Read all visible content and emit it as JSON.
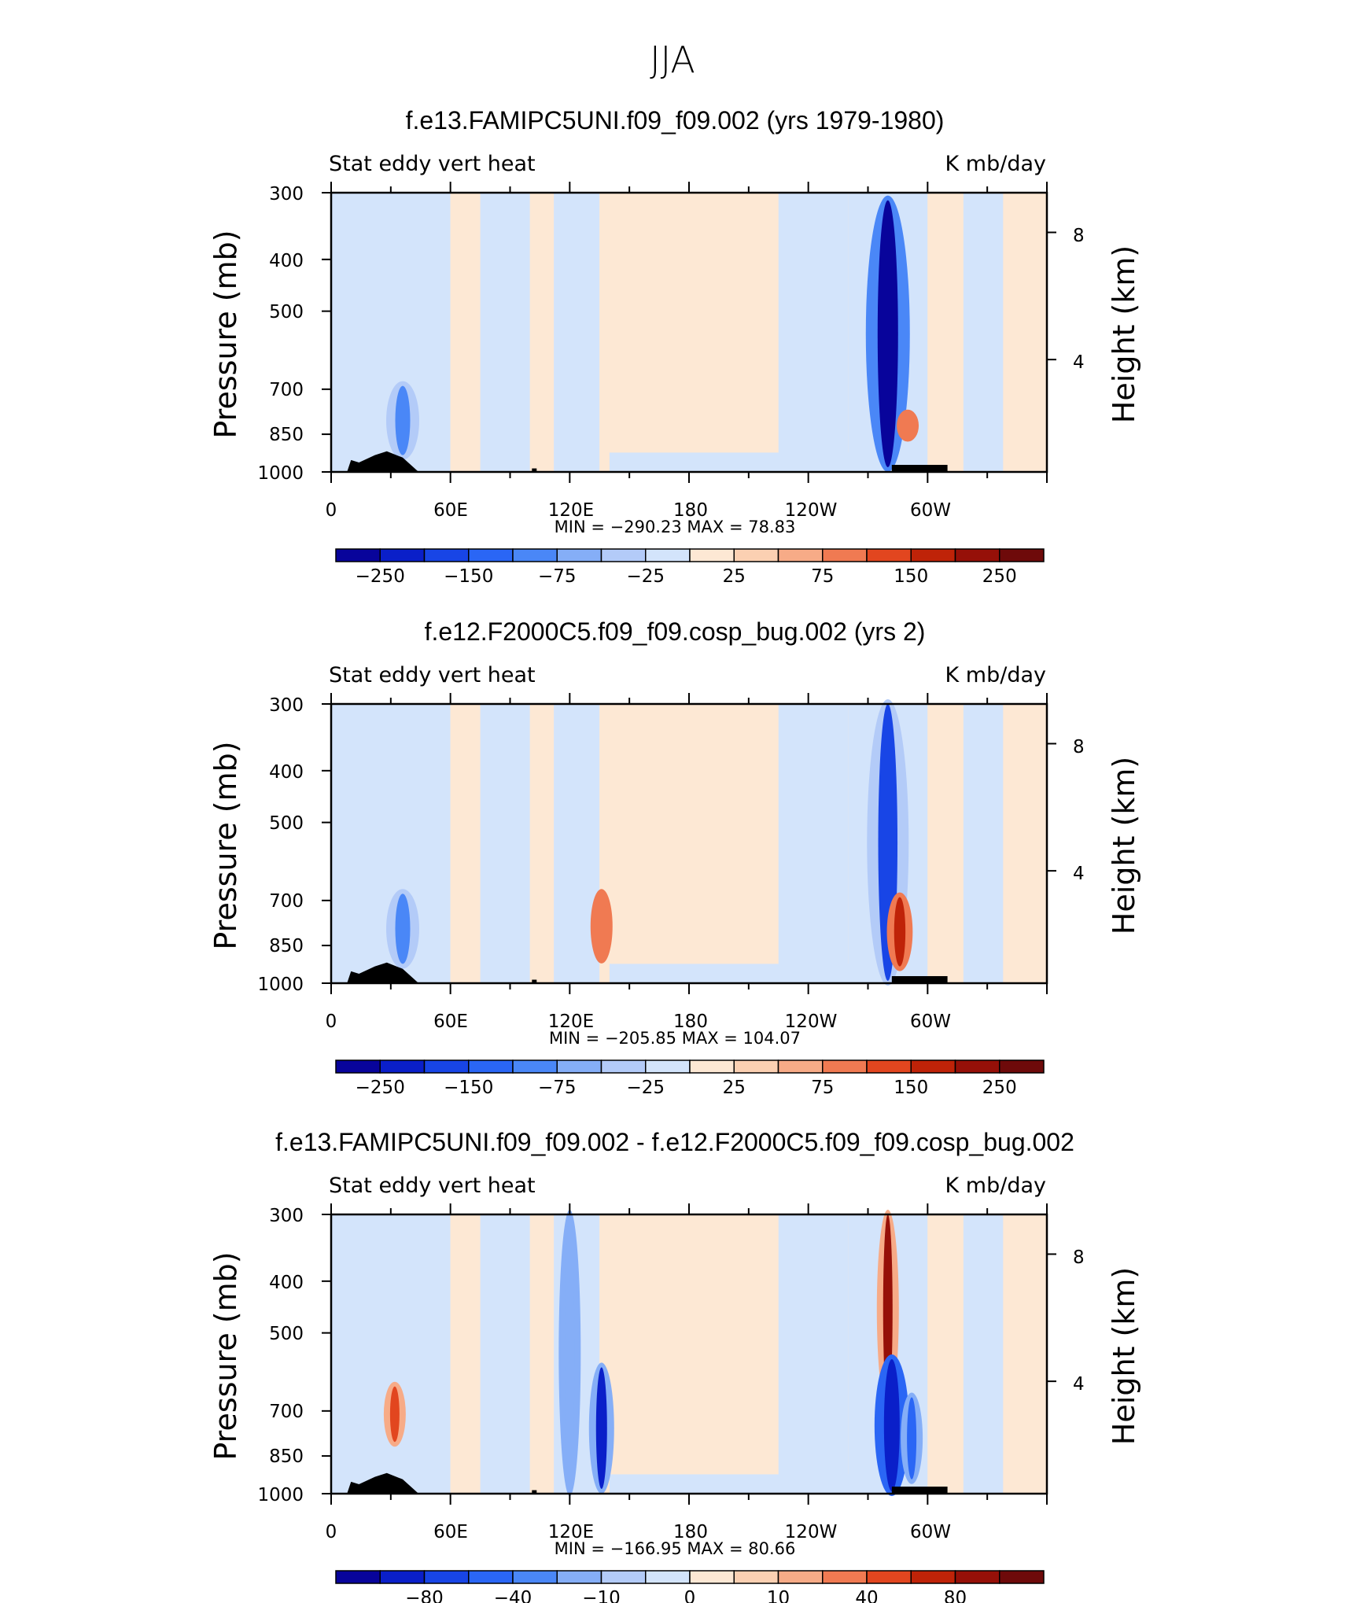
{
  "suptitle": "JJA",
  "colors": [
    "#08049b",
    "#0a1fc9",
    "#1845e6",
    "#2a66f5",
    "#4a87f7",
    "#85aef7",
    "#b3cbf8",
    "#d3e4fb",
    "#fde8d4",
    "#fbd0b2",
    "#f7ab87",
    "#f07a52",
    "#e2461f",
    "#bf2308",
    "#961008",
    "#6e0a0a"
  ],
  "panels": [
    {
      "title": "f.e13.FAMIPC5UNI.f09_f09.002 (yrs 1979-1980)",
      "left_label": "Stat eddy vert heat",
      "right_label": "K mb/day",
      "ylabel": "Pressure (mb)",
      "y2label": "Height (km)",
      "min_label": "MIN",
      "min_value": "−290.23",
      "max_label": "MAX",
      "max_value": "78.83",
      "cb_labels": [
        "−250",
        "−150",
        "−75",
        "−25",
        "25",
        "75",
        "150",
        "250"
      ]
    },
    {
      "title": "f.e12.F2000C5.f09_f09.cosp_bug.002 (yrs 2)",
      "left_label": "Stat eddy vert heat",
      "right_label": "K mb/day",
      "ylabel": "Pressure (mb)",
      "y2label": "Height (km)",
      "min_label": "MIN",
      "min_value": "−205.85",
      "max_label": "MAX",
      "max_value": "104.07",
      "cb_labels": [
        "−250",
        "−150",
        "−75",
        "−25",
        "25",
        "75",
        "150",
        "250"
      ]
    },
    {
      "title": "f.e13.FAMIPC5UNI.f09_f09.002 - f.e12.F2000C5.f09_f09.cosp_bug.002",
      "left_label": "Stat eddy vert heat",
      "right_label": "K mb/day",
      "ylabel": "Pressure (mb)",
      "y2label": "Height (km)",
      "min_label": "MIN",
      "min_value": "−166.95",
      "max_label": "MAX",
      "max_value": "80.66",
      "cb_labels": [
        "−80",
        "−40",
        "−10",
        "0",
        "10",
        "40",
        "80"
      ]
    }
  ],
  "chart_data": [
    {
      "type": "heatmap",
      "title": "f.e13.FAMIPC5UNI.f09_f09.002 (yrs 1979-1980)",
      "field": "Stat eddy vert heat",
      "units": "K mb/day",
      "xlabel": "",
      "ylabel": "Pressure (mb)",
      "y2label": "Height (km)",
      "x_ticks": [
        "0",
        "60E",
        "120E",
        "180",
        "120W",
        "60W"
      ],
      "y_ticks": [
        300,
        400,
        500,
        700,
        850,
        1000
      ],
      "y_log": true,
      "ylim": [
        1000,
        300
      ],
      "y2_ticks": [
        4,
        8
      ],
      "contour_levels": [
        -250,
        -150,
        -75,
        -25,
        25,
        75,
        150,
        250
      ],
      "min": -290.23,
      "max": 78.83,
      "features": [
        {
          "lon": 36,
          "p_top": 690,
          "p_bot": 930,
          "value": -150
        },
        {
          "lon": 280,
          "p_top": 310,
          "p_bot": 980,
          "value": -290
        },
        {
          "lon": 290,
          "p_top": 780,
          "p_bot": 860,
          "value": 40
        }
      ]
    },
    {
      "type": "heatmap",
      "title": "f.e12.F2000C5.f09_f09.cosp_bug.002 (yrs 2)",
      "field": "Stat eddy vert heat",
      "units": "K mb/day",
      "xlabel": "",
      "ylabel": "Pressure (mb)",
      "y2label": "Height (km)",
      "x_ticks": [
        "0",
        "60E",
        "120E",
        "180",
        "120W",
        "60W"
      ],
      "y_ticks": [
        300,
        400,
        500,
        700,
        850,
        1000
      ],
      "y_log": true,
      "ylim": [
        1000,
        300
      ],
      "y2_ticks": [
        4,
        8
      ],
      "contour_levels": [
        -250,
        -150,
        -75,
        -25,
        25,
        75,
        150,
        250
      ],
      "min": -205.85,
      "max": 104.07,
      "features": [
        {
          "lon": 36,
          "p_top": 680,
          "p_bot": 920,
          "value": -150
        },
        {
          "lon": 280,
          "p_top": 300,
          "p_bot": 990,
          "value": -205
        },
        {
          "lon": 136,
          "p_top": 680,
          "p_bot": 900,
          "value": 60
        },
        {
          "lon": 286,
          "p_top": 690,
          "p_bot": 930,
          "value": 104
        }
      ]
    },
    {
      "type": "heatmap",
      "title": "f.e13.FAMIPC5UNI.f09_f09.002 - f.e12.F2000C5.f09_f09.cosp_bug.002",
      "field": "Stat eddy vert heat",
      "units": "K mb/day",
      "xlabel": "",
      "ylabel": "Pressure (mb)",
      "y2label": "Height (km)",
      "x_ticks": [
        "0",
        "60E",
        "120E",
        "180",
        "120W",
        "60W"
      ],
      "y_ticks": [
        300,
        400,
        500,
        700,
        850,
        1000
      ],
      "y_log": true,
      "ylim": [
        1000,
        300
      ],
      "y2_ticks": [
        4,
        8
      ],
      "contour_levels": [
        -80,
        -40,
        -10,
        0,
        10,
        40,
        80
      ],
      "min": -166.95,
      "max": 80.66,
      "features": [
        {
          "lon": 32,
          "p_top": 630,
          "p_bot": 800,
          "value": 60
        },
        {
          "lon": 120,
          "p_top": 300,
          "p_bot": 990,
          "value": -40
        },
        {
          "lon": 136,
          "p_top": 580,
          "p_bot": 980,
          "value": -100
        },
        {
          "lon": 280,
          "p_top": 300,
          "p_bot": 680,
          "value": 80
        },
        {
          "lon": 282,
          "p_top": 560,
          "p_bot": 990,
          "value": -160
        },
        {
          "lon": 292,
          "p_top": 660,
          "p_bot": 940,
          "value": -80
        }
      ]
    }
  ]
}
